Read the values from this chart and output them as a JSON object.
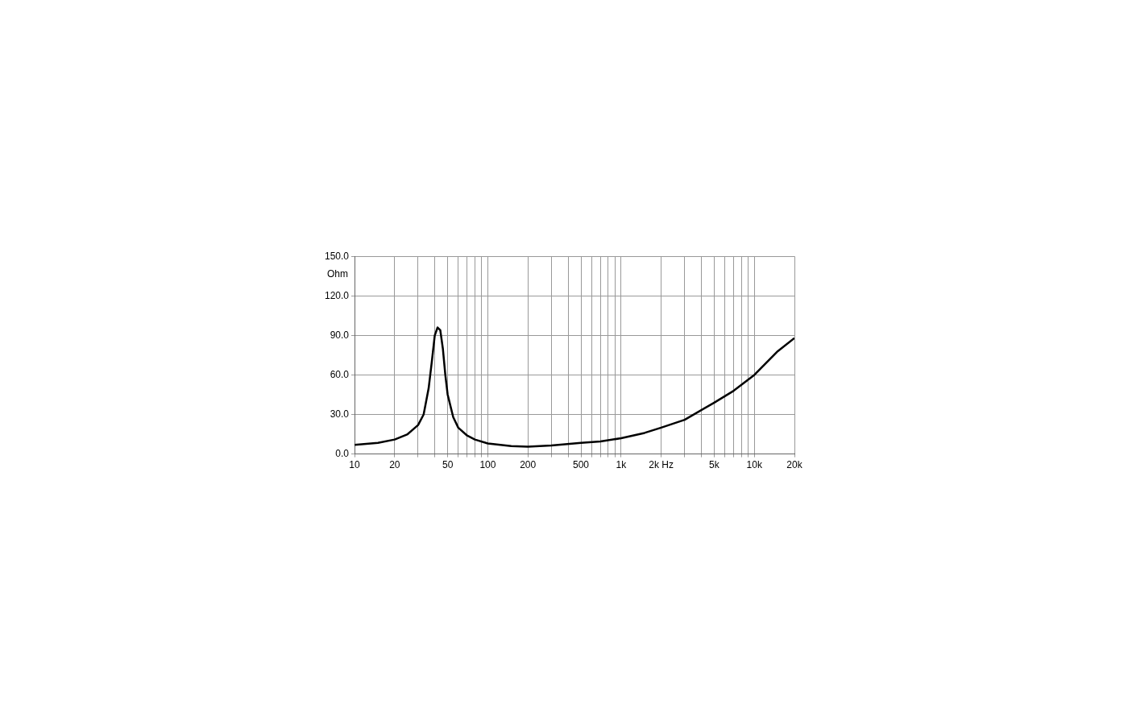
{
  "chart_data": {
    "type": "line",
    "ylabel": "Ohm",
    "x": [
      10,
      15,
      20,
      25,
      30,
      33,
      36,
      38,
      40,
      42,
      44,
      46,
      48,
      50,
      55,
      60,
      70,
      80,
      100,
      150,
      200,
      300,
      500,
      700,
      1000,
      1500,
      2000,
      3000,
      5000,
      7000,
      10000,
      15000,
      20000
    ],
    "series": [
      {
        "color": "#000000",
        "values": [
          7,
          8.5,
          11,
          15,
          22,
          30,
          50,
          70,
          90,
          96,
          94,
          80,
          60,
          45,
          28,
          20,
          14,
          11,
          8,
          6,
          5.5,
          6.5,
          8.5,
          9.5,
          12,
          16,
          20,
          26,
          39,
          48,
          60,
          78,
          88
        ]
      }
    ],
    "log": "x",
    "xlim": [
      10,
      20000
    ],
    "ylim": [
      0,
      150
    ],
    "xticks": [
      10,
      20,
      {
        "value": 30,
        "label": null
      },
      {
        "value": 40,
        "label": null
      },
      50,
      {
        "value": 60,
        "label": null
      },
      {
        "value": 70,
        "label": null
      },
      {
        "value": 80,
        "label": null
      },
      {
        "value": 90,
        "label": null
      },
      100,
      200,
      {
        "value": 300,
        "label": null
      },
      {
        "value": 400,
        "label": null
      },
      500,
      {
        "value": 600,
        "label": null
      },
      {
        "value": 700,
        "label": null
      },
      {
        "value": 800,
        "label": null
      },
      {
        "value": 900,
        "label": null
      },
      {
        "value": 1000,
        "label": "1k"
      },
      {
        "value": 2000,
        "label": "2k Hz"
      },
      {
        "value": 3000,
        "label": null
      },
      {
        "value": 4000,
        "label": null
      },
      {
        "value": 5000,
        "label": "5k"
      },
      {
        "value": 6000,
        "label": null
      },
      {
        "value": 7000,
        "label": null
      },
      {
        "value": 8000,
        "label": null
      },
      {
        "value": 9000,
        "label": null
      },
      {
        "value": 10000,
        "label": "10k"
      },
      {
        "value": 20000,
        "label": "20k"
      }
    ],
    "yticks": [
      {
        "value": 0,
        "label": "0.0"
      },
      {
        "value": 30,
        "label": "30.0"
      },
      {
        "value": 60,
        "label": "60.0"
      },
      {
        "value": 90,
        "label": "90.0"
      },
      {
        "value": 120,
        "label": "120.0"
      },
      {
        "value": 150,
        "label": "150.0"
      }
    ],
    "grid": true,
    "legend": false,
    "marker": "none",
    "line_style": "solid"
  }
}
